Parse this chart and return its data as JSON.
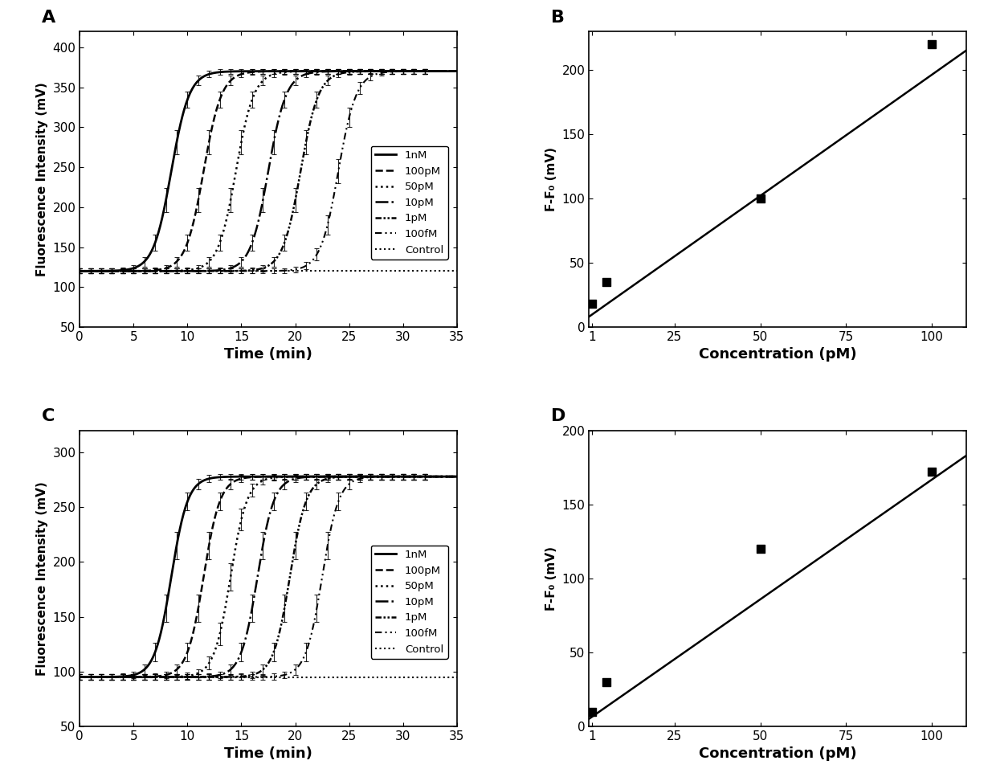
{
  "panel_A": {
    "label": "A",
    "ylabel": "Fluorescence Intensity (mV)",
    "xlabel": "Time (min)",
    "ylim": [
      50,
      420
    ],
    "xlim": [
      0,
      35
    ],
    "yticks": [
      50,
      100,
      150,
      200,
      250,
      300,
      350,
      400
    ],
    "xticks": [
      0,
      5,
      10,
      15,
      20,
      25,
      30,
      35
    ],
    "baseline": 120,
    "plateau": 370,
    "curves": [
      {
        "label": "1nM",
        "midpoint": 8.5,
        "k": 1.2,
        "linestyle": "solid",
        "lw": 2.0
      },
      {
        "label": "100pM",
        "midpoint": 11.5,
        "k": 1.2,
        "linestyle": "dashed",
        "lw": 1.8
      },
      {
        "label": "50pM",
        "midpoint": 14.5,
        "k": 1.2,
        "linestyle": "dotted",
        "lw": 1.8
      },
      {
        "label": "10pM",
        "midpoint": 17.5,
        "k": 1.2,
        "linestyle": "dashdot",
        "lw": 1.8
      },
      {
        "label": "1pM",
        "midpoint": 20.5,
        "k": 1.2,
        "linestyle": "dashdotdotted",
        "lw": 1.8
      },
      {
        "label": "100fM",
        "midpoint": 24.0,
        "k": 1.2,
        "linestyle": "densedash",
        "lw": 1.5
      },
      {
        "label": "Control",
        "midpoint": 50.0,
        "k": 1.2,
        "linestyle": "dotted",
        "lw": 1.5
      }
    ],
    "error_scale": 12
  },
  "panel_B": {
    "label": "B",
    "ylabel": "F-F₀ (mV)",
    "xlabel": "Concentration (pM)",
    "ylim": [
      0,
      230
    ],
    "xlim": [
      0,
      110
    ],
    "yticks": [
      0,
      50,
      100,
      150,
      200
    ],
    "xticks": [
      1,
      25,
      50,
      75,
      100
    ],
    "points_x": [
      1,
      5,
      50,
      100
    ],
    "points_y": [
      18,
      35,
      100,
      220
    ],
    "fit_x": [
      0,
      110
    ],
    "fit_y": [
      8,
      215
    ]
  },
  "panel_C": {
    "label": "C",
    "ylabel": "Fluorescence Intensity (mV)",
    "xlabel": "Time (min)",
    "ylim": [
      50,
      320
    ],
    "xlim": [
      0,
      35
    ],
    "yticks": [
      50,
      100,
      150,
      200,
      250,
      300
    ],
    "xticks": [
      0,
      5,
      10,
      15,
      20,
      25,
      30,
      35
    ],
    "baseline": 95,
    "plateau": 278,
    "curves": [
      {
        "label": "1nM",
        "midpoint": 8.5,
        "k": 1.3,
        "linestyle": "solid",
        "lw": 2.0
      },
      {
        "label": "100pM",
        "midpoint": 11.5,
        "k": 1.3,
        "linestyle": "dashed",
        "lw": 1.8
      },
      {
        "label": "50pM",
        "midpoint": 14.0,
        "k": 1.3,
        "linestyle": "dotted",
        "lw": 1.8
      },
      {
        "label": "10pM",
        "midpoint": 16.5,
        "k": 1.3,
        "linestyle": "dashdot",
        "lw": 1.8
      },
      {
        "label": "1pM",
        "midpoint": 19.5,
        "k": 1.3,
        "linestyle": "dashdotdotted",
        "lw": 1.8
      },
      {
        "label": "100fM",
        "midpoint": 22.5,
        "k": 1.3,
        "linestyle": "densedash",
        "lw": 1.5
      },
      {
        "label": "Control",
        "midpoint": 50.0,
        "k": 1.3,
        "linestyle": "dotted",
        "lw": 1.5
      }
    ],
    "error_scale": 10
  },
  "panel_D": {
    "label": "D",
    "ylabel": "F-F₀ (mV)",
    "xlabel": "Concentration (pM)",
    "ylim": [
      0,
      200
    ],
    "xlim": [
      0,
      110
    ],
    "yticks": [
      0,
      50,
      100,
      150,
      200
    ],
    "xticks": [
      1,
      25,
      50,
      75,
      100
    ],
    "points_x": [
      1,
      5,
      50,
      100
    ],
    "points_y": [
      10,
      30,
      120,
      172
    ],
    "fit_x": [
      0,
      110
    ],
    "fit_y": [
      5,
      183
    ]
  },
  "legend_labels": [
    "1nM",
    "100pM",
    "50pM",
    "10pM",
    "1pM",
    "100fM",
    "Control"
  ],
  "legend_linestyles": [
    "solid",
    "dashed",
    "dotted",
    "dashdot",
    "dashdotdotted",
    "densedash",
    "dotted"
  ],
  "legend_lws": [
    2.0,
    1.8,
    1.8,
    1.8,
    1.8,
    1.5,
    1.5
  ],
  "bg_color": "white"
}
